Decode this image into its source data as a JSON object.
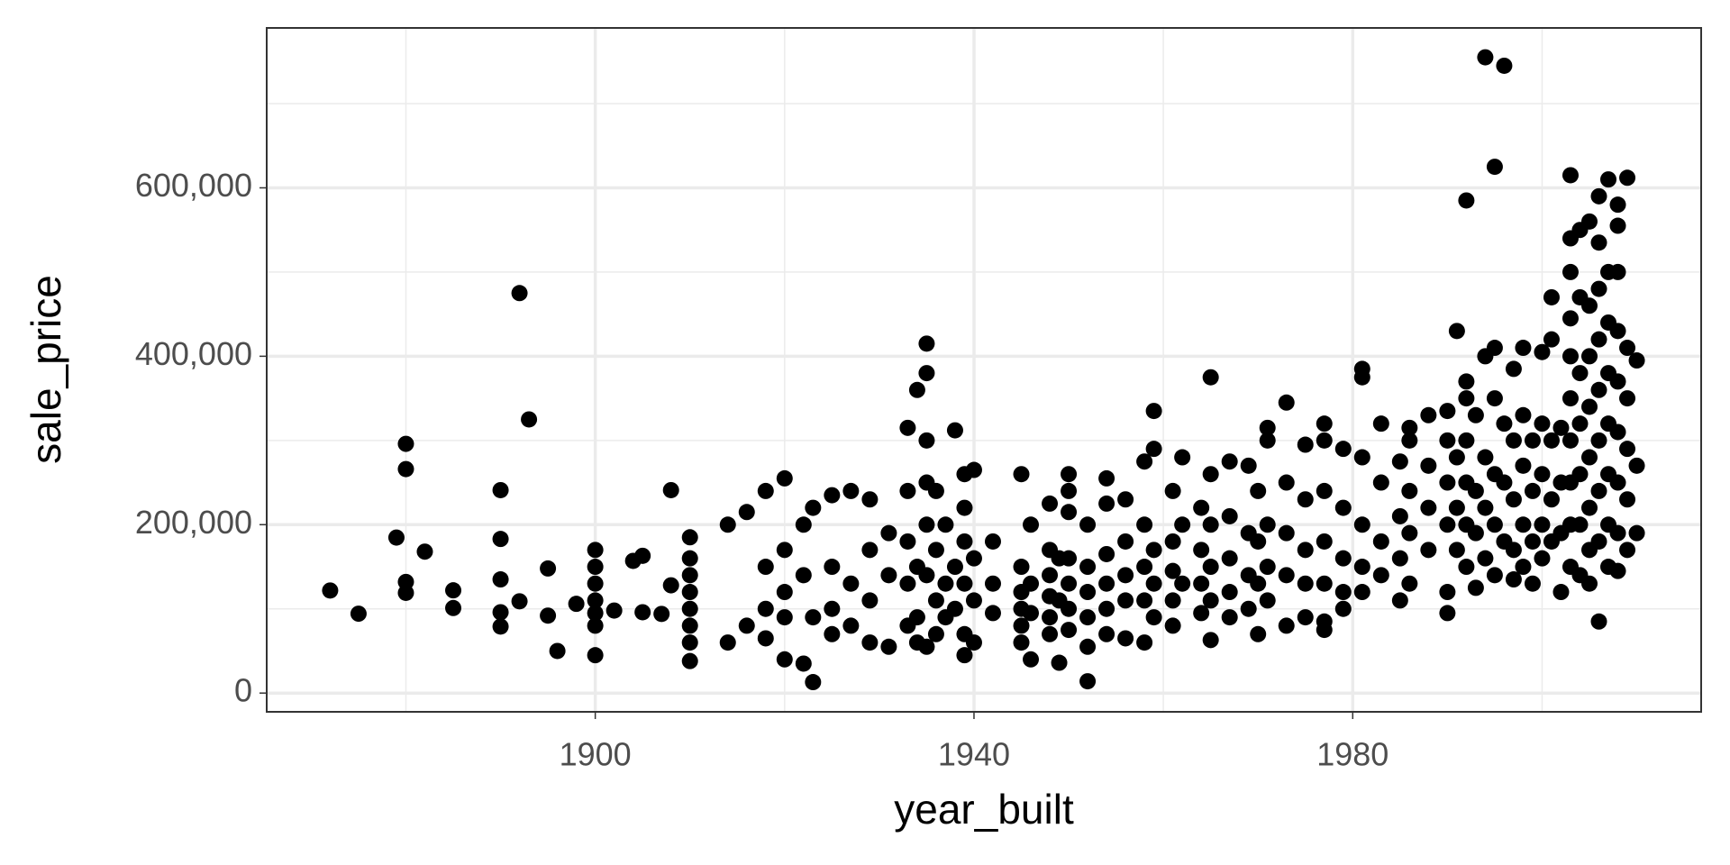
{
  "chart_data": {
    "type": "scatter",
    "x_label": "year_built",
    "y_label": "sale_price",
    "xlim": [
      1865.3,
      2016.8
    ],
    "ylim": [
      -22265,
      789900
    ],
    "xticks": [
      1900,
      1940,
      1980
    ],
    "yticks": [
      0,
      {
        "value": 200000,
        "label": "200,000"
      },
      {
        "value": 400000,
        "label": "400,000"
      },
      {
        "value": 600000,
        "label": "600,000"
      }
    ],
    "x_minor_grid": [
      1880,
      1920,
      1960,
      2000
    ],
    "y_minor_grid": [
      100000,
      300000,
      500000,
      700000
    ],
    "grid": true,
    "color": "#000000",
    "x": [
      1872,
      1875,
      1879,
      1880,
      1880,
      1880,
      1880,
      1882,
      1885,
      1885,
      1890,
      1890,
      1890,
      1890,
      1890,
      1892,
      1892,
      1893,
      1895,
      1895,
      1896,
      1898,
      1900,
      1900,
      1900,
      1900,
      1900,
      1900,
      1900,
      1902,
      1904,
      1905,
      1905,
      1907,
      1908,
      1908,
      1910,
      1910,
      1910,
      1910,
      1910,
      1910,
      1910,
      1910,
      1914,
      1914,
      1916,
      1916,
      1918,
      1918,
      1918,
      1918,
      1920,
      1920,
      1920,
      1920,
      1920,
      1922,
      1922,
      1922,
      1923,
      1923,
      1923,
      1925,
      1925,
      1925,
      1925,
      1927,
      1927,
      1927,
      1929,
      1929,
      1929,
      1929,
      1931,
      1931,
      1931,
      1933,
      1933,
      1933,
      1933,
      1933,
      1934,
      1934,
      1934,
      1934,
      1935,
      1935,
      1935,
      1935,
      1935,
      1935,
      1935,
      1936,
      1936,
      1936,
      1936,
      1937,
      1937,
      1937,
      1938,
      1938,
      1938,
      1939,
      1939,
      1939,
      1939,
      1939,
      1939,
      1940,
      1940,
      1940,
      1940,
      1942,
      1942,
      1942,
      1945,
      1945,
      1945,
      1945,
      1945,
      1945,
      1946,
      1946,
      1946,
      1946,
      1948,
      1948,
      1948,
      1948,
      1948,
      1948,
      1949,
      1949,
      1949,
      1950,
      1950,
      1950,
      1950,
      1950,
      1950,
      1950,
      1952,
      1952,
      1952,
      1952,
      1952,
      1952,
      1954,
      1954,
      1954,
      1954,
      1954,
      1954,
      1956,
      1956,
      1956,
      1956,
      1956,
      1958,
      1958,
      1958,
      1958,
      1958,
      1959,
      1959,
      1959,
      1959,
      1959,
      1961,
      1961,
      1961,
      1961,
      1961,
      1962,
      1962,
      1962,
      1964,
      1964,
      1964,
      1964,
      1965,
      1965,
      1965,
      1965,
      1965,
      1965,
      1967,
      1967,
      1967,
      1967,
      1967,
      1969,
      1969,
      1969,
      1969,
      1970,
      1970,
      1970,
      1970,
      1971,
      1971,
      1971,
      1971,
      1971,
      1973,
      1973,
      1973,
      1973,
      1973,
      1975,
      1975,
      1975,
      1975,
      1975,
      1977,
      1977,
      1977,
      1977,
      1977,
      1977,
      1977,
      1979,
      1979,
      1979,
      1979,
      1979,
      1981,
      1981,
      1981,
      1981,
      1981,
      1981,
      1983,
      1983,
      1983,
      1983,
      1985,
      1985,
      1985,
      1985,
      1986,
      1986,
      1986,
      1986,
      1986,
      1988,
      1988,
      1988,
      1988,
      1990,
      1990,
      1990,
      1990,
      1990,
      1990,
      1991,
      1991,
      1991,
      1991,
      1992,
      1992,
      1992,
      1992,
      1992,
      1992,
      1992,
      1993,
      1993,
      1993,
      1993,
      1994,
      1994,
      1994,
      1994,
      1994,
      1995,
      1995,
      1995,
      1995,
      1995,
      1995,
      1996,
      1996,
      1996,
      1996,
      1997,
      1997,
      1997,
      1997,
      1997,
      1998,
      1998,
      1998,
      1998,
      1998,
      1999,
      1999,
      1999,
      1999,
      2000,
      2000,
      2000,
      2000,
      2000,
      2001,
      2001,
      2001,
      2001,
      2001,
      2002,
      2002,
      2002,
      2002,
      2003,
      2003,
      2003,
      2003,
      2003,
      2003,
      2003,
      2003,
      2003,
      2003,
      2004,
      2004,
      2004,
      2004,
      2004,
      2004,
      2004,
      2005,
      2005,
      2005,
      2005,
      2005,
      2005,
      2005,
      2005,
      2006,
      2006,
      2006,
      2006,
      2006,
      2006,
      2006,
      2006,
      2006,
      2007,
      2007,
      2007,
      2007,
      2007,
      2007,
      2007,
      2007,
      2008,
      2008,
      2008,
      2008,
      2008,
      2008,
      2008,
      2008,
      2008,
      2009,
      2009,
      2009,
      2009,
      2009,
      2009,
      2010,
      2010,
      2010
    ],
    "y": [
      121800,
      94300,
      184700,
      296000,
      266000,
      132000,
      119000,
      168000,
      122000,
      101000,
      241000,
      183000,
      135000,
      96000,
      79000,
      475000,
      109000,
      325000,
      148000,
      92000,
      50000,
      106000,
      170000,
      150000,
      130000,
      110000,
      95000,
      80000,
      45000,
      98000,
      157000,
      163000,
      96000,
      94000,
      241000,
      128000,
      185000,
      160000,
      140000,
      120000,
      100000,
      80000,
      60000,
      38000,
      200000,
      60000,
      215000,
      80000,
      240000,
      150000,
      100000,
      65000,
      255000,
      170000,
      120000,
      90000,
      40000,
      35000,
      200000,
      140000,
      13000,
      220000,
      90000,
      235000,
      150000,
      100000,
      70000,
      240000,
      130000,
      80000,
      230000,
      170000,
      110000,
      60000,
      55000,
      190000,
      140000,
      315000,
      240000,
      180000,
      130000,
      80000,
      360000,
      150000,
      90000,
      60000,
      415000,
      380000,
      300000,
      250000,
      200000,
      140000,
      55000,
      240000,
      170000,
      110000,
      70000,
      200000,
      130000,
      90000,
      312000,
      150000,
      100000,
      260000,
      220000,
      180000,
      130000,
      45000,
      70000,
      265000,
      160000,
      110000,
      60000,
      180000,
      130000,
      95000,
      260000,
      150000,
      120000,
      100000,
      80000,
      60000,
      200000,
      130000,
      40000,
      95000,
      225000,
      170000,
      140000,
      115000,
      90000,
      70000,
      36000,
      160000,
      110000,
      260000,
      240000,
      215000,
      160000,
      130000,
      100000,
      75000,
      14000,
      55000,
      200000,
      150000,
      120000,
      90000,
      255000,
      225000,
      165000,
      130000,
      100000,
      70000,
      230000,
      180000,
      140000,
      110000,
      65000,
      275000,
      200000,
      150000,
      110000,
      60000,
      290000,
      335000,
      170000,
      130000,
      90000,
      240000,
      180000,
      145000,
      110000,
      80000,
      280000,
      200000,
      130000,
      220000,
      170000,
      130000,
      95000,
      375000,
      260000,
      200000,
      150000,
      63000,
      110000,
      275000,
      210000,
      160000,
      120000,
      90000,
      270000,
      190000,
      140000,
      100000,
      240000,
      180000,
      130000,
      70000,
      315000,
      300000,
      200000,
      150000,
      110000,
      345000,
      250000,
      190000,
      140000,
      80000,
      295000,
      230000,
      170000,
      130000,
      90000,
      300000,
      320000,
      240000,
      180000,
      130000,
      75000,
      85000,
      290000,
      220000,
      160000,
      120000,
      100000,
      385000,
      375000,
      280000,
      200000,
      150000,
      120000,
      320000,
      250000,
      180000,
      140000,
      210000,
      160000,
      110000,
      275000,
      315000,
      300000,
      240000,
      190000,
      130000,
      330000,
      270000,
      220000,
      170000,
      335000,
      300000,
      250000,
      200000,
      120000,
      95000,
      430000,
      280000,
      220000,
      170000,
      585000,
      370000,
      350000,
      300000,
      250000,
      200000,
      150000,
      330000,
      240000,
      190000,
      125000,
      755000,
      400000,
      280000,
      220000,
      160000,
      625000,
      410000,
      350000,
      260000,
      200000,
      140000,
      745000,
      320000,
      250000,
      180000,
      385000,
      300000,
      230000,
      170000,
      135000,
      410000,
      330000,
      270000,
      200000,
      150000,
      300000,
      240000,
      180000,
      130000,
      405000,
      320000,
      260000,
      200000,
      160000,
      470000,
      420000,
      300000,
      230000,
      180000,
      315000,
      250000,
      190000,
      120000,
      615000,
      540000,
      500000,
      445000,
      400000,
      350000,
      300000,
      250000,
      200000,
      150000,
      550000,
      470000,
      380000,
      320000,
      260000,
      200000,
      140000,
      560000,
      460000,
      400000,
      340000,
      280000,
      220000,
      170000,
      130000,
      590000,
      535000,
      480000,
      420000,
      360000,
      300000,
      240000,
      180000,
      85000,
      610000,
      500000,
      440000,
      380000,
      320000,
      260000,
      200000,
      150000,
      580000,
      555000,
      500000,
      430000,
      370000,
      310000,
      250000,
      190000,
      145000,
      612000,
      410000,
      350000,
      290000,
      230000,
      170000,
      395000,
      270000,
      190000
    ]
  }
}
